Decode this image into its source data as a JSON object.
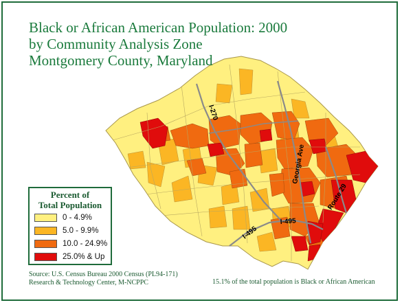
{
  "title": {
    "line1": "Black or African American Population: 2000",
    "line2": "by Community Analysis Zone",
    "line3": "Montgomery County, Maryland"
  },
  "legend": {
    "title_line1": "Percent of",
    "title_line2": "Total Population",
    "items": [
      {
        "label": "0 - 4.9%",
        "color": "#fff080"
      },
      {
        "label": "5.0 - 9.9%",
        "color": "#fbb624"
      },
      {
        "label": "10.0 - 24.9%",
        "color": "#f06a10"
      },
      {
        "label": "25.0% & Up",
        "color": "#e00c0c"
      }
    ]
  },
  "roads": {
    "i270": "I-270",
    "georgia": "Georgia Ave",
    "route29": "Route 29",
    "i495_east": "I-495",
    "i495_west": "I-495"
  },
  "source": {
    "line1": "Source: U.S. Census Bureau 2000 Census (PL94-171)",
    "line2": "Research & Technology Center, M-NCPPC"
  },
  "note": "15.1% of the total population is Black or African American",
  "colors": {
    "frame": "#1e6b3a",
    "title": "#1a7a3c",
    "road": "#8a8a8a",
    "boundary": "#b0a060"
  }
}
